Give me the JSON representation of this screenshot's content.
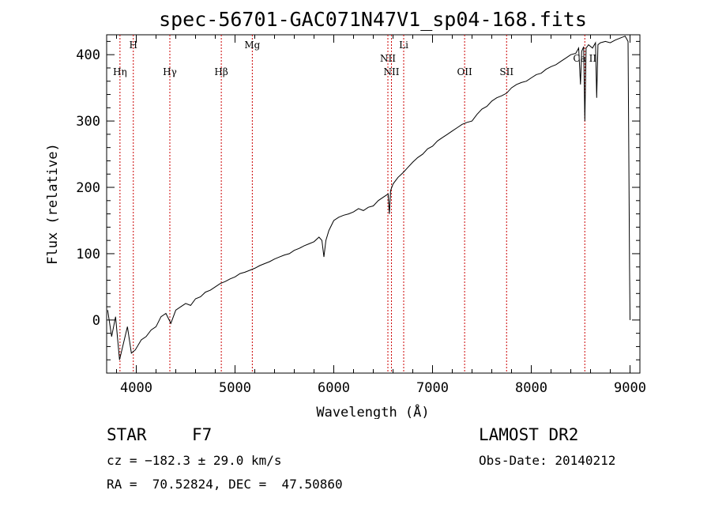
{
  "chart_data": {
    "type": "line",
    "title": "spec-56701-GAC071N47V1_sp04-168.fits",
    "xlabel": "Wavelength (Å)",
    "ylabel": "Flux (relative)",
    "xlim": [
      3700,
      9100
    ],
    "ylim": [
      -80,
      430
    ],
    "xticks": [
      4000,
      5000,
      6000,
      7000,
      8000,
      9000
    ],
    "yticks": [
      0,
      100,
      200,
      300,
      400
    ],
    "grid": false,
    "series_color": "#000000",
    "line_color": "#cc0000",
    "spectrum": [
      [
        3710,
        15
      ],
      [
        3750,
        -25
      ],
      [
        3790,
        5
      ],
      [
        3830,
        -60
      ],
      [
        3870,
        -35
      ],
      [
        3910,
        -10
      ],
      [
        3950,
        -50
      ],
      [
        3990,
        -45
      ],
      [
        4050,
        -30
      ],
      [
        4100,
        -25
      ],
      [
        4150,
        -15
      ],
      [
        4200,
        -10
      ],
      [
        4250,
        5
      ],
      [
        4300,
        10
      ],
      [
        4350,
        -5
      ],
      [
        4400,
        15
      ],
      [
        4450,
        20
      ],
      [
        4500,
        25
      ],
      [
        4550,
        22
      ],
      [
        4600,
        32
      ],
      [
        4650,
        35
      ],
      [
        4700,
        42
      ],
      [
        4750,
        45
      ],
      [
        4800,
        50
      ],
      [
        4850,
        55
      ],
      [
        4900,
        58
      ],
      [
        4950,
        62
      ],
      [
        5000,
        65
      ],
      [
        5050,
        70
      ],
      [
        5100,
        72
      ],
      [
        5150,
        75
      ],
      [
        5200,
        78
      ],
      [
        5250,
        82
      ],
      [
        5300,
        85
      ],
      [
        5350,
        88
      ],
      [
        5400,
        92
      ],
      [
        5450,
        95
      ],
      [
        5500,
        98
      ],
      [
        5550,
        100
      ],
      [
        5600,
        105
      ],
      [
        5650,
        108
      ],
      [
        5700,
        112
      ],
      [
        5750,
        115
      ],
      [
        5800,
        118
      ],
      [
        5850,
        125
      ],
      [
        5880,
        120
      ],
      [
        5900,
        95
      ],
      [
        5920,
        120
      ],
      [
        5950,
        135
      ],
      [
        6000,
        150
      ],
      [
        6050,
        155
      ],
      [
        6100,
        158
      ],
      [
        6150,
        160
      ],
      [
        6200,
        163
      ],
      [
        6250,
        168
      ],
      [
        6300,
        165
      ],
      [
        6350,
        170
      ],
      [
        6400,
        172
      ],
      [
        6450,
        180
      ],
      [
        6500,
        185
      ],
      [
        6550,
        190
      ],
      [
        6563,
        160
      ],
      [
        6575,
        195
      ],
      [
        6600,
        205
      ],
      [
        6650,
        215
      ],
      [
        6700,
        222
      ],
      [
        6750,
        230
      ],
      [
        6800,
        238
      ],
      [
        6850,
        245
      ],
      [
        6900,
        250
      ],
      [
        6950,
        258
      ],
      [
        7000,
        262
      ],
      [
        7050,
        270
      ],
      [
        7100,
        275
      ],
      [
        7150,
        280
      ],
      [
        7200,
        285
      ],
      [
        7250,
        290
      ],
      [
        7300,
        295
      ],
      [
        7350,
        298
      ],
      [
        7400,
        300
      ],
      [
        7450,
        310
      ],
      [
        7500,
        318
      ],
      [
        7550,
        322
      ],
      [
        7600,
        330
      ],
      [
        7650,
        335
      ],
      [
        7700,
        338
      ],
      [
        7750,
        342
      ],
      [
        7800,
        350
      ],
      [
        7850,
        355
      ],
      [
        7900,
        358
      ],
      [
        7950,
        360
      ],
      [
        8000,
        365
      ],
      [
        8050,
        370
      ],
      [
        8100,
        372
      ],
      [
        8150,
        378
      ],
      [
        8200,
        382
      ],
      [
        8250,
        385
      ],
      [
        8300,
        390
      ],
      [
        8350,
        395
      ],
      [
        8400,
        400
      ],
      [
        8450,
        402
      ],
      [
        8480,
        410
      ],
      [
        8498,
        355
      ],
      [
        8510,
        405
      ],
      [
        8530,
        412
      ],
      [
        8542,
        300
      ],
      [
        8555,
        410
      ],
      [
        8580,
        415
      ],
      [
        8620,
        410
      ],
      [
        8650,
        418
      ],
      [
        8662,
        335
      ],
      [
        8675,
        415
      ],
      [
        8700,
        418
      ],
      [
        8750,
        420
      ],
      [
        8800,
        418
      ],
      [
        8850,
        422
      ],
      [
        8900,
        425
      ],
      [
        8950,
        428
      ],
      [
        8980,
        420
      ],
      [
        8995,
        80
      ],
      [
        9000,
        0
      ]
    ],
    "lines": [
      {
        "label": "Hη",
        "x": 3835,
        "tier": "lower"
      },
      {
        "label": "H",
        "x": 3970,
        "tier": "upper"
      },
      {
        "label": "Hγ",
        "x": 4340,
        "tier": "lower"
      },
      {
        "label": "Hβ",
        "x": 4861,
        "tier": "lower"
      },
      {
        "label": "Mg",
        "x": 5175,
        "tier": "upper"
      },
      {
        "label": "NII",
        "x": 6548,
        "tier": "middle"
      },
      {
        "label": "NII",
        "x": 6584,
        "tier": "lower"
      },
      {
        "label": "Li",
        "x": 6708,
        "tier": "upper"
      },
      {
        "label": "OII",
        "x": 7325,
        "tier": "lower"
      },
      {
        "label": "SII",
        "x": 7750,
        "tier": "lower"
      },
      {
        "label": "Ca II",
        "x": 8542,
        "tier": "middle"
      }
    ]
  },
  "info": {
    "class": "STAR",
    "subclass": "F7",
    "survey": "LAMOST DR2",
    "cz": "cz = −182.3 ± 29.0 km/s",
    "obs_date": "Obs-Date: 20140212",
    "coords": "RA =  70.52824, DEC =  47.50860"
  }
}
